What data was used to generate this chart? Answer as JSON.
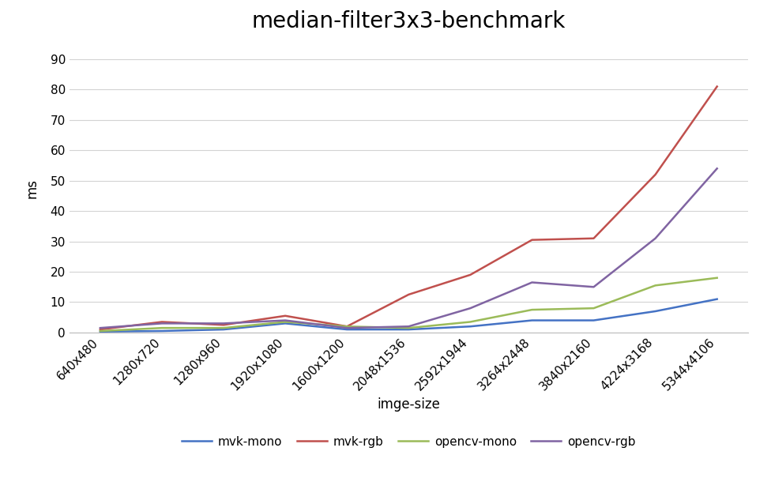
{
  "title": "median-filter3x3-benchmark",
  "xlabel": "imge-size",
  "ylabel": "ms",
  "categories": [
    "640x480",
    "1280x720",
    "1280x960",
    "1920x1080",
    "1600x1200",
    "2048x1536",
    "2592x1944",
    "3264x2448",
    "3840x2160",
    "4224x3168",
    "5344x4106"
  ],
  "series": {
    "mvk-mono": {
      "values": [
        0.3,
        0.5,
        1.0,
        3.0,
        1.0,
        1.0,
        2.0,
        4.0,
        4.0,
        7.0,
        11.0
      ],
      "color": "#4472C4"
    },
    "mvk-rgb": {
      "values": [
        1.0,
        3.5,
        2.5,
        5.5,
        2.0,
        12.5,
        19.0,
        30.5,
        31.0,
        52.0,
        81.0
      ],
      "color": "#C0504D"
    },
    "opencv-mono": {
      "values": [
        0.5,
        1.5,
        1.5,
        3.5,
        2.0,
        1.5,
        3.5,
        7.5,
        8.0,
        15.5,
        18.0
      ],
      "color": "#9BBB59"
    },
    "opencv-rgb": {
      "values": [
        1.5,
        3.0,
        3.0,
        4.0,
        1.5,
        2.0,
        8.0,
        16.5,
        15.0,
        31.0,
        54.0
      ],
      "color": "#8064A2"
    }
  },
  "ylim": [
    0,
    95
  ],
  "yticks": [
    0,
    10,
    20,
    30,
    40,
    50,
    60,
    70,
    80,
    90
  ],
  "background_color": "#ffffff",
  "grid_color": "#d3d3d3",
  "title_fontsize": 20,
  "label_fontsize": 12,
  "tick_fontsize": 11,
  "legend_fontsize": 11
}
